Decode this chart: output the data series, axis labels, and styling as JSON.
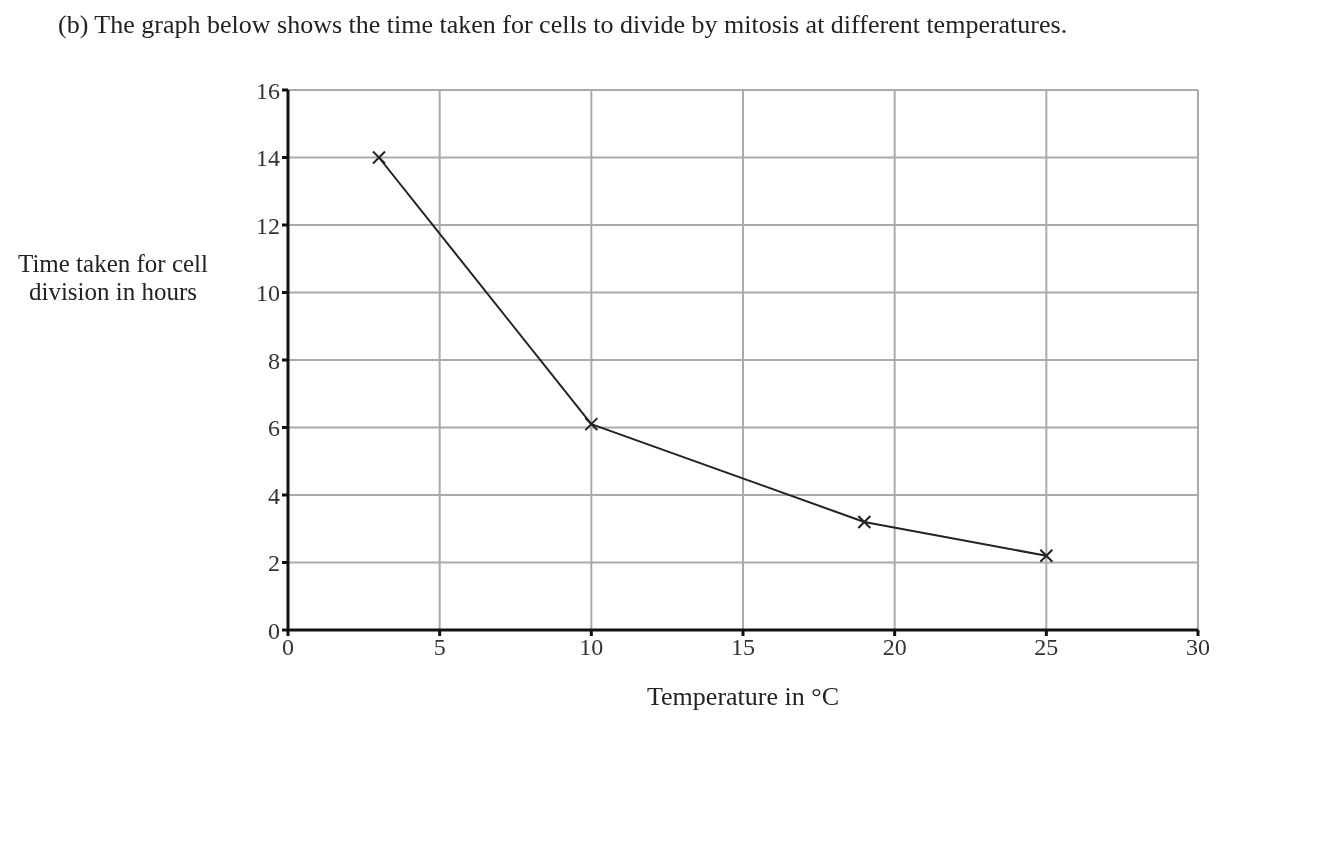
{
  "chart_data": {
    "type": "line",
    "title": "(b) The graph below shows the time taken for cells to divide by mitosis at different temperatures.",
    "xlabel": "Temperature in °C",
    "ylabel": "Time taken for cell division in hours",
    "x": [
      3,
      10,
      19,
      25
    ],
    "series": [
      {
        "color": "#222222",
        "values": [
          14,
          6.1,
          3.2,
          2.2
        ]
      }
    ],
    "xlim": [
      0,
      30
    ],
    "xticks": [
      0,
      5,
      10,
      15,
      20,
      25,
      30
    ],
    "ylim": [
      0,
      16
    ],
    "yticks": [
      0,
      2,
      4,
      6,
      8,
      10,
      12,
      14,
      16
    ],
    "grid": true,
    "marker": "cross",
    "line_style": "solid"
  }
}
